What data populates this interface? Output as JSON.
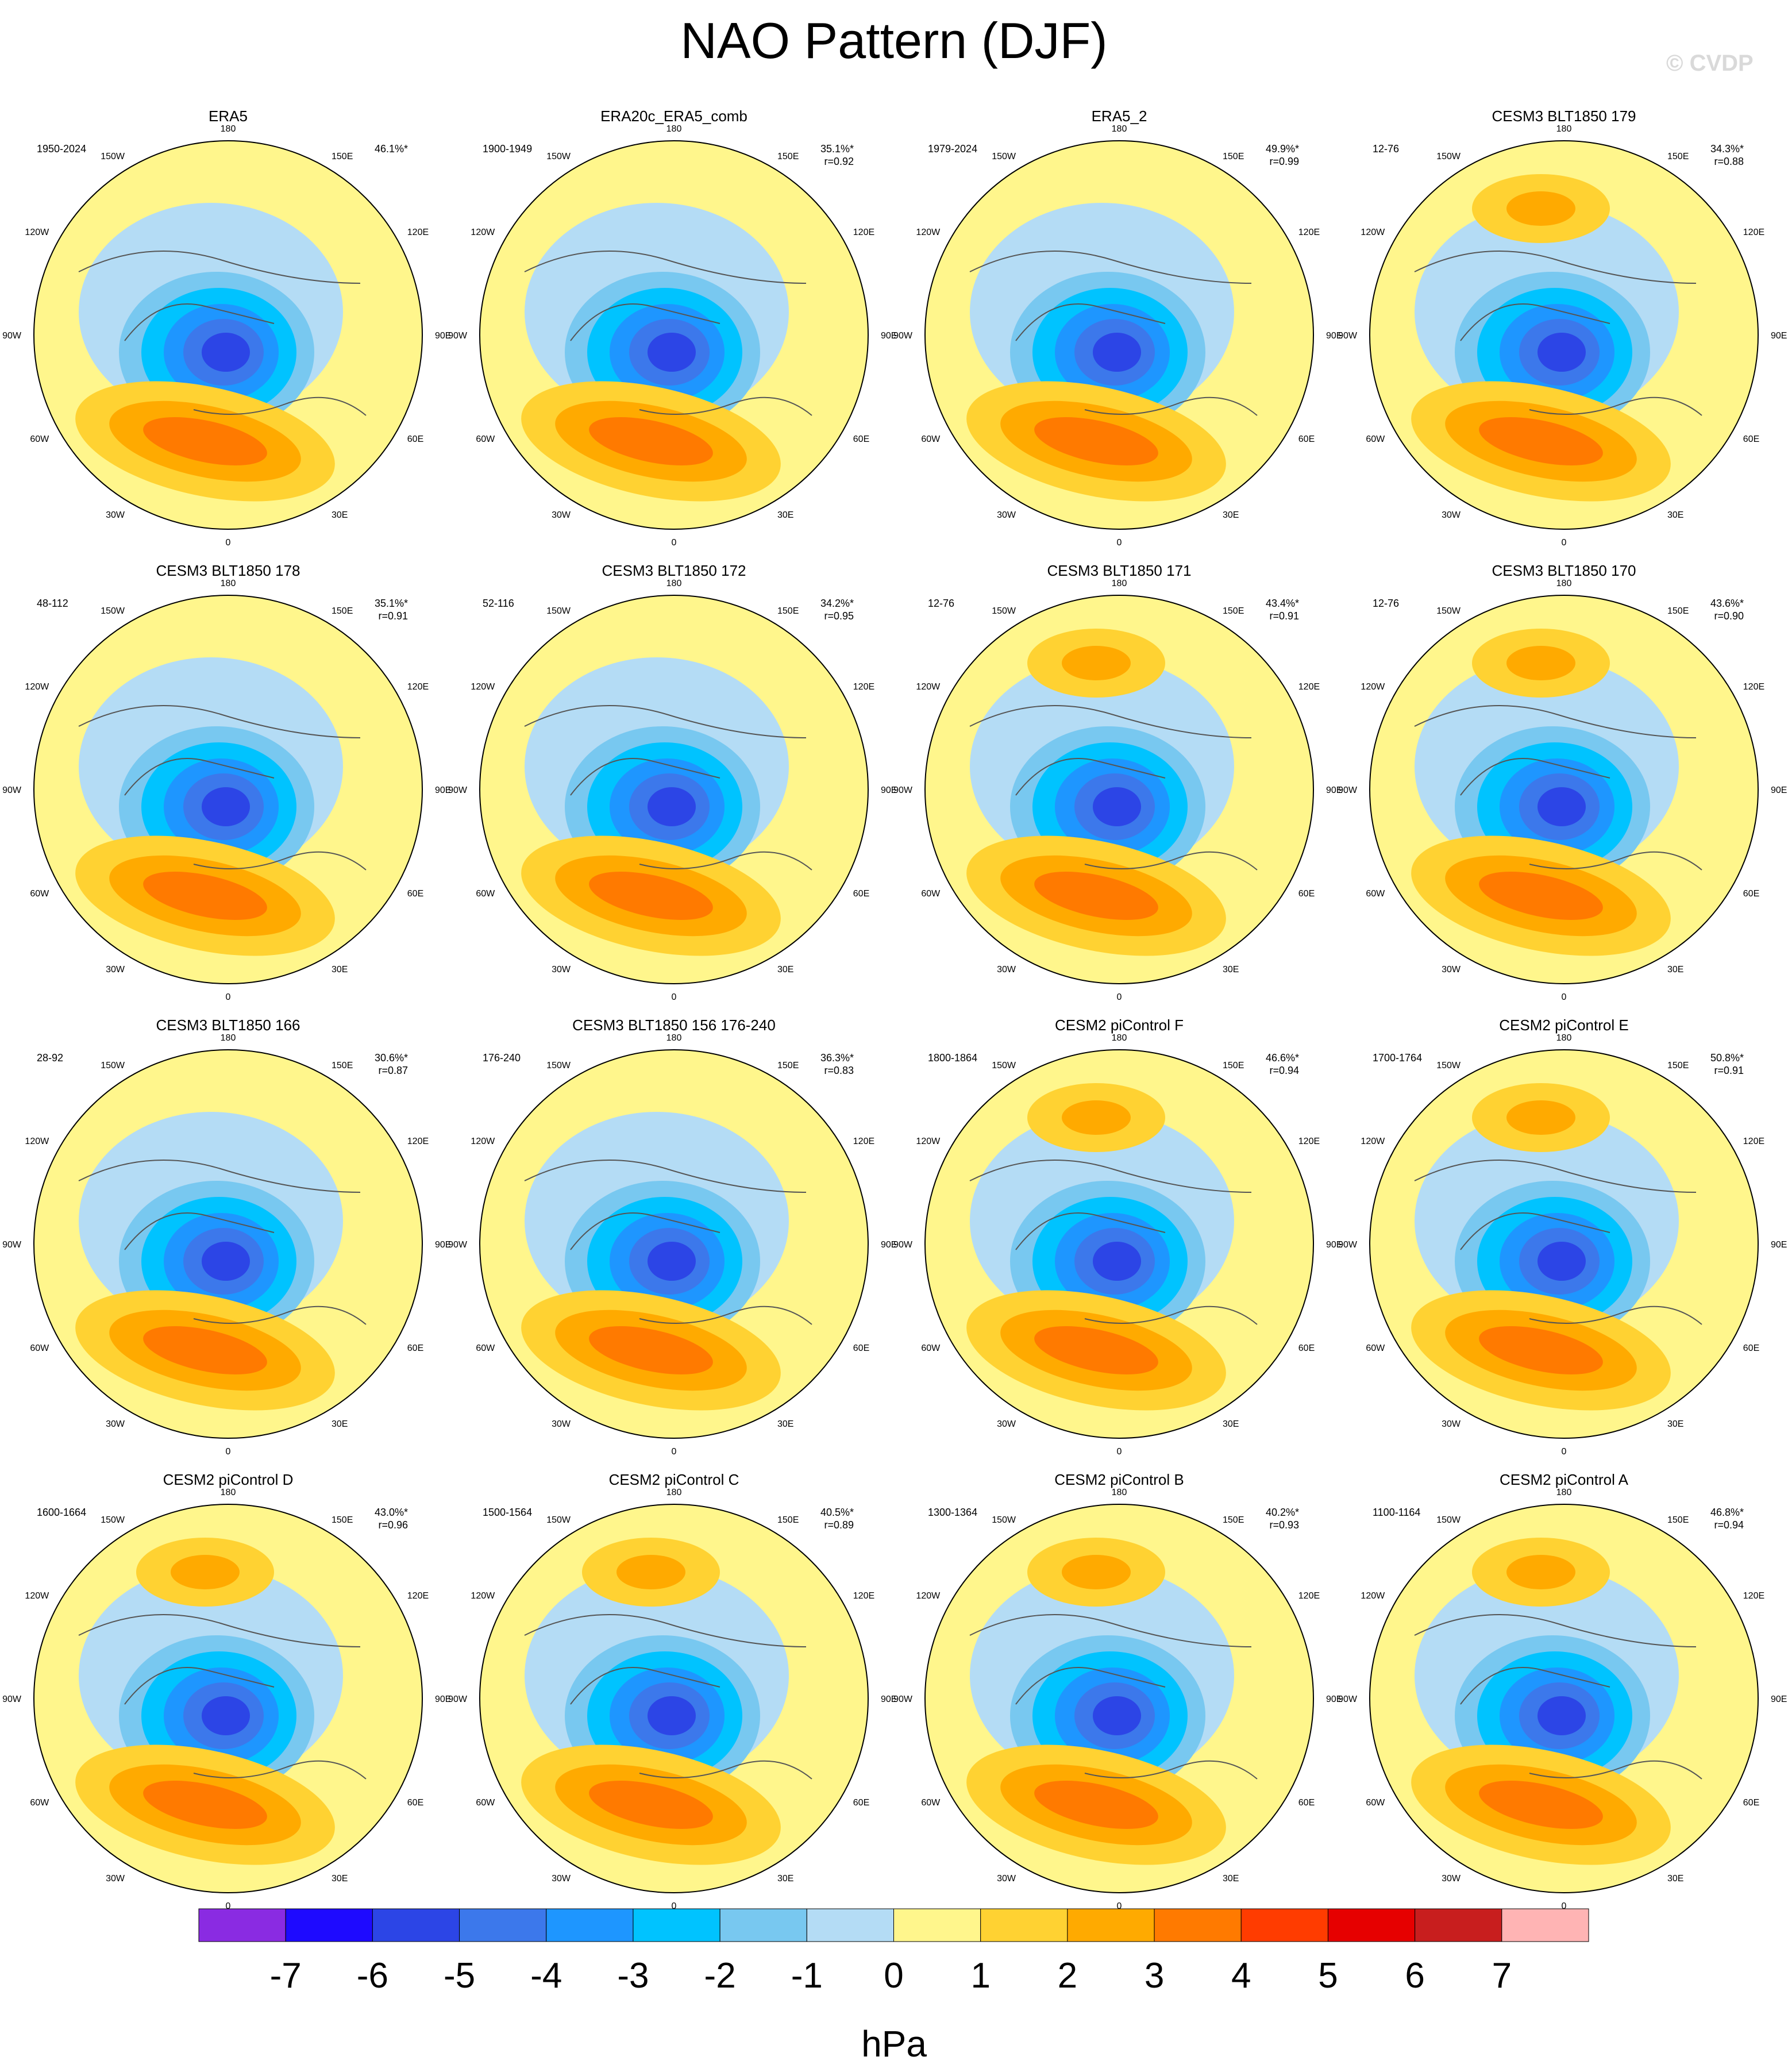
{
  "title": "NAO Pattern (DJF)",
  "watermark": "© CVDP",
  "units": "hPa",
  "lon_labels": [
    "180",
    "150E",
    "120E",
    "90E",
    "60E",
    "30E",
    "0",
    "30W",
    "60W",
    "90W",
    "120W",
    "150W"
  ],
  "colorbar": {
    "ticks": [
      "-7",
      "-6",
      "-5",
      "-4",
      "-3",
      "-2",
      "-1",
      "0",
      "1",
      "2",
      "3",
      "4",
      "5",
      "6",
      "7"
    ],
    "colors": [
      "#8a2be2",
      "#1e0aff",
      "#2c45e6",
      "#3c78eb",
      "#1e96ff",
      "#00c3ff",
      "#78c8f0",
      "#b4dcf5",
      "#fff68c",
      "#ffd232",
      "#ffaa00",
      "#ff7a00",
      "#ff3c00",
      "#e60000",
      "#c81e1e",
      "#ffb4b4"
    ]
  },
  "panels": [
    {
      "name": "ERA5",
      "years": "1950-2024",
      "pct": "46.1%*",
      "r": ""
    },
    {
      "name": "ERA20c_ERA5_comb",
      "years": "1900-1949",
      "pct": "35.1%*",
      "r": "r=0.92"
    },
    {
      "name": "ERA5_2",
      "years": "1979-2024",
      "pct": "49.9%*",
      "r": "r=0.99"
    },
    {
      "name": "CESM3 BLT1850 179",
      "years": "12-76",
      "pct": "34.3%*",
      "r": "r=0.88"
    },
    {
      "name": "CESM3 BLT1850 178",
      "years": "48-112",
      "pct": "35.1%*",
      "r": "r=0.91"
    },
    {
      "name": "CESM3 BLT1850 172",
      "years": "52-116",
      "pct": "34.2%*",
      "r": "r=0.95"
    },
    {
      "name": "CESM3 BLT1850 171",
      "years": "12-76",
      "pct": "43.4%*",
      "r": "r=0.91"
    },
    {
      "name": "CESM3 BLT1850 170",
      "years": "12-76",
      "pct": "43.6%*",
      "r": "r=0.90"
    },
    {
      "name": "CESM3 BLT1850 166",
      "years": "28-92",
      "pct": "30.6%*",
      "r": "r=0.87"
    },
    {
      "name": "CESM3 BLT1850 156 176-240",
      "years": "176-240",
      "pct": "36.3%*",
      "r": "r=0.83"
    },
    {
      "name": "CESM2 piControl F",
      "years": "1800-1864",
      "pct": "46.6%*",
      "r": "r=0.94"
    },
    {
      "name": "CESM2 piControl E",
      "years": "1700-1764",
      "pct": "50.8%*",
      "r": "r=0.91"
    },
    {
      "name": "CESM2 piControl D",
      "years": "1600-1664",
      "pct": "43.0%*",
      "r": "r=0.96"
    },
    {
      "name": "CESM2 piControl C",
      "years": "1500-1564",
      "pct": "40.5%*",
      "r": "r=0.89"
    },
    {
      "name": "CESM2 piControl B",
      "years": "1300-1364",
      "pct": "40.2%*",
      "r": "r=0.93"
    },
    {
      "name": "CESM2 piControl A",
      "years": "1100-1164",
      "pct": "46.8%*",
      "r": "r=0.94"
    }
  ]
}
